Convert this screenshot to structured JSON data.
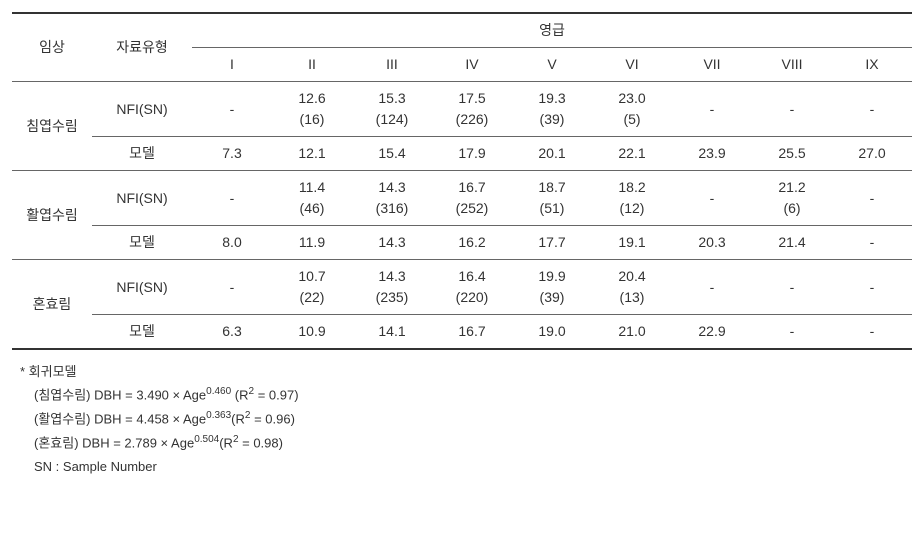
{
  "table": {
    "headers": {
      "col1": "임상",
      "col2": "자료유형",
      "group": "영급",
      "roman": [
        "I",
        "II",
        "III",
        "IV",
        "V",
        "VI",
        "VII",
        "VIII",
        "IX"
      ]
    },
    "groups": [
      {
        "name": "침엽수림",
        "rows": [
          {
            "label": "NFI(SN)",
            "cells": [
              {
                "top": "-",
                "bot": ""
              },
              {
                "top": "12.6",
                "bot": "(16)"
              },
              {
                "top": "15.3",
                "bot": "(124)"
              },
              {
                "top": "17.5",
                "bot": "(226)"
              },
              {
                "top": "19.3",
                "bot": "(39)"
              },
              {
                "top": "23.0",
                "bot": "(5)"
              },
              {
                "top": "-",
                "bot": ""
              },
              {
                "top": "-",
                "bot": ""
              },
              {
                "top": "-",
                "bot": ""
              }
            ]
          },
          {
            "label": "모델",
            "cells": [
              {
                "top": "7.3",
                "bot": ""
              },
              {
                "top": "12.1",
                "bot": ""
              },
              {
                "top": "15.4",
                "bot": ""
              },
              {
                "top": "17.9",
                "bot": ""
              },
              {
                "top": "20.1",
                "bot": ""
              },
              {
                "top": "22.1",
                "bot": ""
              },
              {
                "top": "23.9",
                "bot": ""
              },
              {
                "top": "25.5",
                "bot": ""
              },
              {
                "top": "27.0",
                "bot": ""
              }
            ]
          }
        ]
      },
      {
        "name": "활엽수림",
        "rows": [
          {
            "label": "NFI(SN)",
            "cells": [
              {
                "top": "-",
                "bot": ""
              },
              {
                "top": "11.4",
                "bot": "(46)"
              },
              {
                "top": "14.3",
                "bot": "(316)"
              },
              {
                "top": "16.7",
                "bot": "(252)"
              },
              {
                "top": "18.7",
                "bot": "(51)"
              },
              {
                "top": "18.2",
                "bot": "(12)"
              },
              {
                "top": "-",
                "bot": ""
              },
              {
                "top": "21.2",
                "bot": "(6)"
              },
              {
                "top": "-",
                "bot": ""
              }
            ]
          },
          {
            "label": "모델",
            "cells": [
              {
                "top": "8.0",
                "bot": ""
              },
              {
                "top": "11.9",
                "bot": ""
              },
              {
                "top": "14.3",
                "bot": ""
              },
              {
                "top": "16.2",
                "bot": ""
              },
              {
                "top": "17.7",
                "bot": ""
              },
              {
                "top": "19.1",
                "bot": ""
              },
              {
                "top": "20.3",
                "bot": ""
              },
              {
                "top": "21.4",
                "bot": ""
              },
              {
                "top": "-",
                "bot": ""
              }
            ]
          }
        ]
      },
      {
        "name": "혼효림",
        "rows": [
          {
            "label": "NFI(SN)",
            "cells": [
              {
                "top": "-",
                "bot": ""
              },
              {
                "top": "10.7",
                "bot": "(22)"
              },
              {
                "top": "14.3",
                "bot": "(235)"
              },
              {
                "top": "16.4",
                "bot": "(220)"
              },
              {
                "top": "19.9",
                "bot": "(39)"
              },
              {
                "top": "20.4",
                "bot": "(13)"
              },
              {
                "top": "-",
                "bot": ""
              },
              {
                "top": "-",
                "bot": ""
              },
              {
                "top": "-",
                "bot": ""
              }
            ]
          },
          {
            "label": "모델",
            "cells": [
              {
                "top": "6.3",
                "bot": ""
              },
              {
                "top": "10.9",
                "bot": ""
              },
              {
                "top": "14.1",
                "bot": ""
              },
              {
                "top": "16.7",
                "bot": ""
              },
              {
                "top": "19.0",
                "bot": ""
              },
              {
                "top": "21.0",
                "bot": ""
              },
              {
                "top": "22.9",
                "bot": ""
              },
              {
                "top": "-",
                "bot": ""
              },
              {
                "top": "-",
                "bot": ""
              }
            ]
          }
        ]
      }
    ]
  },
  "notes": {
    "line1": "* 회귀모델",
    "models": [
      {
        "label": "(침엽수림) DBH = 3.490 × Age",
        "exp": "0.460",
        "r2": " (R",
        "r2v": "2",
        "r2e": " = 0.97)"
      },
      {
        "label": "(활엽수림) DBH = 4.458 × Age",
        "exp": "0.363",
        "r2": "(R",
        "r2v": "2",
        "r2e": " = 0.96)"
      },
      {
        "label": "(혼효림) DBH = 2.789 × Age",
        "exp": "0.504",
        "r2": "(R",
        "r2v": "2",
        "r2e": " = 0.98)"
      }
    ],
    "sn": "SN : Sample Number"
  }
}
